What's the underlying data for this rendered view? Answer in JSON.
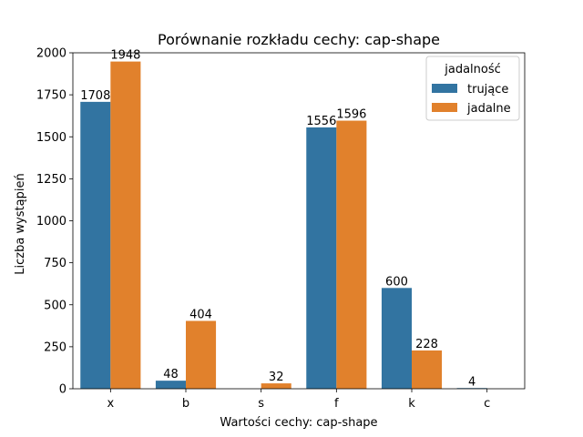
{
  "chart_data": {
    "type": "bar",
    "title": "Porównanie rozkładu cechy: cap-shape",
    "xlabel": "Wartości cechy: cap-shape",
    "ylabel": "Liczba wystąpień",
    "categories": [
      "x",
      "b",
      "s",
      "f",
      "k",
      "c"
    ],
    "series": [
      {
        "name": "trujące",
        "color": "#3274a1",
        "values": [
          1708,
          48,
          null,
          1556,
          600,
          4
        ]
      },
      {
        "name": "jadalne",
        "color": "#e1812c",
        "values": [
          1948,
          404,
          32,
          1596,
          228,
          null
        ]
      }
    ],
    "bar_labels": [
      [
        "1708",
        "48",
        "",
        "1556",
        "600",
        "4"
      ],
      [
        "1948",
        "404",
        "32",
        "1596",
        "228",
        ""
      ]
    ],
    "ylim": [
      0,
      2000
    ],
    "yticks": [
      0,
      250,
      500,
      750,
      1000,
      1250,
      1500,
      1750,
      2000
    ],
    "legend": {
      "title": "jadalność",
      "position": "top-right"
    },
    "grid": false
  }
}
